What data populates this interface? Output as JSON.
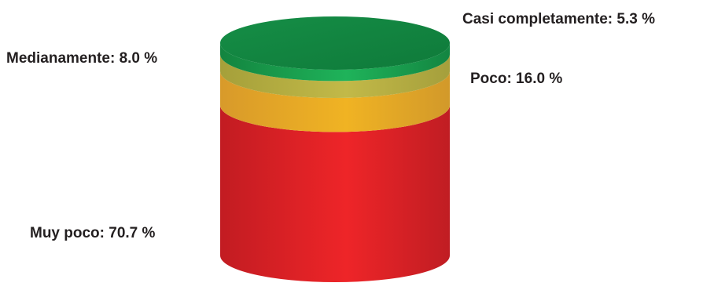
{
  "chart_data": {
    "type": "stacked-cylinder",
    "title": "",
    "unit": "%",
    "categories": [
      "Muy poco",
      "Poco",
      "Medianamente",
      "Casi completamente"
    ],
    "values": [
      70.7,
      16.0,
      8.0,
      5.3
    ],
    "labels": [
      "Muy poco: 70.7 %",
      "Poco: 16.0 %",
      "Medianamente: 8.0 %",
      "Casi completamente: 5.3 %"
    ],
    "colors": [
      "#ec2127",
      "#f0b323",
      "#b8b43c",
      "#17994d"
    ],
    "stack_order": "bottom-to-top",
    "legend": "none"
  }
}
